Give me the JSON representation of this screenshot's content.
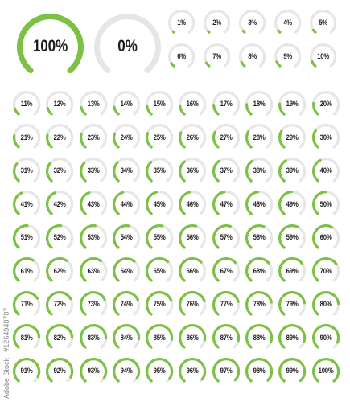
{
  "colors": {
    "track": "#e6e6e6",
    "fill": "#7cc143",
    "text": "#1e1e1e"
  },
  "large_gauges": [
    {
      "label": "100%",
      "value": 100
    },
    {
      "label": "0%",
      "value": 0
    }
  ],
  "small_gauges": [
    {
      "label": "1%",
      "value": 1
    },
    {
      "label": "2%",
      "value": 2
    },
    {
      "label": "3%",
      "value": 3
    },
    {
      "label": "4%",
      "value": 4
    },
    {
      "label": "5%",
      "value": 5
    },
    {
      "label": "6%",
      "value": 6
    },
    {
      "label": "7%",
      "value": 7
    },
    {
      "label": "8%",
      "value": 8
    },
    {
      "label": "9%",
      "value": 9
    },
    {
      "label": "10%",
      "value": 10
    }
  ],
  "grid_gauges": [
    {
      "label": "11%",
      "value": 11
    },
    {
      "label": "12%",
      "value": 12
    },
    {
      "label": "13%",
      "value": 13
    },
    {
      "label": "14%",
      "value": 14
    },
    {
      "label": "15%",
      "value": 15
    },
    {
      "label": "16%",
      "value": 16
    },
    {
      "label": "17%",
      "value": 17
    },
    {
      "label": "18%",
      "value": 18
    },
    {
      "label": "19%",
      "value": 19
    },
    {
      "label": "20%",
      "value": 20
    },
    {
      "label": "21%",
      "value": 21
    },
    {
      "label": "22%",
      "value": 22
    },
    {
      "label": "23%",
      "value": 23
    },
    {
      "label": "24%",
      "value": 24
    },
    {
      "label": "25%",
      "value": 25
    },
    {
      "label": "26%",
      "value": 26
    },
    {
      "label": "27%",
      "value": 27
    },
    {
      "label": "28%",
      "value": 28
    },
    {
      "label": "29%",
      "value": 29
    },
    {
      "label": "30%",
      "value": 30
    },
    {
      "label": "31%",
      "value": 31
    },
    {
      "label": "32%",
      "value": 32
    },
    {
      "label": "33%",
      "value": 33
    },
    {
      "label": "34%",
      "value": 34
    },
    {
      "label": "35%",
      "value": 35
    },
    {
      "label": "36%",
      "value": 36
    },
    {
      "label": "37%",
      "value": 37
    },
    {
      "label": "38%",
      "value": 38
    },
    {
      "label": "39%",
      "value": 39
    },
    {
      "label": "40%",
      "value": 40
    },
    {
      "label": "41%",
      "value": 41
    },
    {
      "label": "42%",
      "value": 42
    },
    {
      "label": "43%",
      "value": 43
    },
    {
      "label": "44%",
      "value": 44
    },
    {
      "label": "45%",
      "value": 45
    },
    {
      "label": "46%",
      "value": 46
    },
    {
      "label": "47%",
      "value": 47
    },
    {
      "label": "48%",
      "value": 48
    },
    {
      "label": "49%",
      "value": 49
    },
    {
      "label": "50%",
      "value": 50
    },
    {
      "label": "51%",
      "value": 51
    },
    {
      "label": "52%",
      "value": 52
    },
    {
      "label": "53%",
      "value": 53
    },
    {
      "label": "54%",
      "value": 54
    },
    {
      "label": "55%",
      "value": 55
    },
    {
      "label": "56%",
      "value": 56
    },
    {
      "label": "57%",
      "value": 57
    },
    {
      "label": "58%",
      "value": 58
    },
    {
      "label": "59%",
      "value": 59
    },
    {
      "label": "60%",
      "value": 60
    },
    {
      "label": "61%",
      "value": 61
    },
    {
      "label": "62%",
      "value": 62
    },
    {
      "label": "63%",
      "value": 63
    },
    {
      "label": "64%",
      "value": 64
    },
    {
      "label": "65%",
      "value": 65
    },
    {
      "label": "66%",
      "value": 66
    },
    {
      "label": "67%",
      "value": 67
    },
    {
      "label": "68%",
      "value": 68
    },
    {
      "label": "69%",
      "value": 69
    },
    {
      "label": "70%",
      "value": 70
    },
    {
      "label": "71%",
      "value": 71
    },
    {
      "label": "72%",
      "value": 72
    },
    {
      "label": "73%",
      "value": 73
    },
    {
      "label": "74%",
      "value": 74
    },
    {
      "label": "75%",
      "value": 75
    },
    {
      "label": "76%",
      "value": 76
    },
    {
      "label": "77%",
      "value": 77
    },
    {
      "label": "78%",
      "value": 78
    },
    {
      "label": "79%",
      "value": 79
    },
    {
      "label": "80%",
      "value": 80
    },
    {
      "label": "81%",
      "value": 81
    },
    {
      "label": "82%",
      "value": 82
    },
    {
      "label": "83%",
      "value": 83
    },
    {
      "label": "84%",
      "value": 84
    },
    {
      "label": "85%",
      "value": 85
    },
    {
      "label": "86%",
      "value": 86
    },
    {
      "label": "87%",
      "value": 87
    },
    {
      "label": "88%",
      "value": 88
    },
    {
      "label": "89%",
      "value": 89
    },
    {
      "label": "90%",
      "value": 90
    },
    {
      "label": "91%",
      "value": 91
    },
    {
      "label": "92%",
      "value": 92
    },
    {
      "label": "93%",
      "value": 93
    },
    {
      "label": "94%",
      "value": 94
    },
    {
      "label": "95%",
      "value": 95
    },
    {
      "label": "96%",
      "value": 96
    },
    {
      "label": "97%",
      "value": 97
    },
    {
      "label": "98%",
      "value": 98
    },
    {
      "label": "99%",
      "value": 99
    },
    {
      "label": "100%",
      "value": 100
    }
  ],
  "watermark": "Adobe Stock | #1264948707"
}
